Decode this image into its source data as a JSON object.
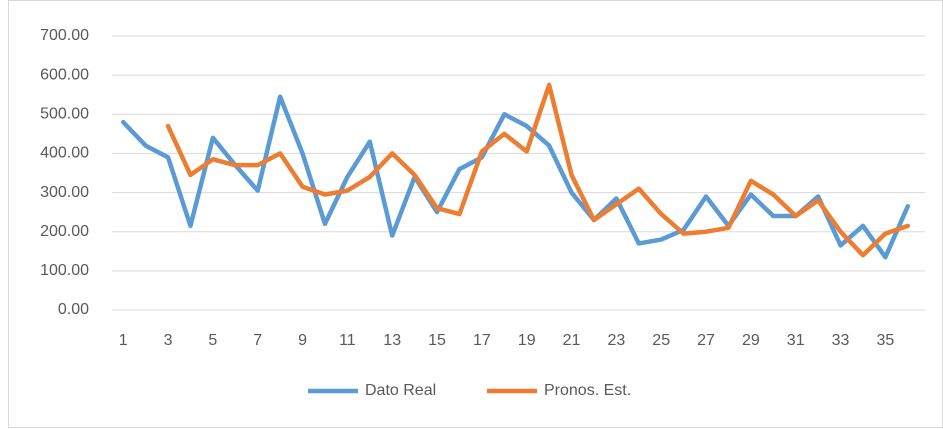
{
  "chart_data": {
    "type": "line",
    "categories": [
      "1",
      null,
      "3",
      null,
      "5",
      null,
      "7",
      null,
      "9",
      null,
      "11",
      null,
      "13",
      null,
      "15",
      null,
      "17",
      null,
      "19",
      null,
      "21",
      null,
      "23",
      null,
      "25",
      null,
      "27",
      null,
      "29",
      null,
      "31",
      null,
      "33",
      null,
      "35",
      null
    ],
    "series": [
      {
        "name": "Dato Real",
        "color": "#5b9bd5",
        "values": [
          480,
          420,
          390,
          215,
          440,
          370,
          305,
          545,
          400,
          220,
          340,
          430,
          190,
          340,
          250,
          360,
          390,
          500,
          470,
          420,
          300,
          230,
          285,
          170,
          180,
          205,
          290,
          215,
          295,
          240,
          240,
          290,
          165,
          215,
          135,
          265
        ]
      },
      {
        "name": "Pronos. Est.",
        "color": "#ed7d31",
        "values": [
          null,
          null,
          470,
          345,
          385,
          370,
          370,
          400,
          315,
          295,
          305,
          340,
          400,
          345,
          260,
          245,
          405,
          450,
          405,
          575,
          345,
          230,
          270,
          310,
          245,
          195,
          200,
          210,
          330,
          295,
          240,
          280,
          200,
          140,
          195,
          215
        ]
      }
    ],
    "ylim": [
      0,
      700
    ],
    "yticks": [
      {
        "value": 0,
        "label": "0.00"
      },
      {
        "value": 100,
        "label": "100.00"
      },
      {
        "value": 200,
        "label": "200.00"
      },
      {
        "value": 300,
        "label": "300.00"
      },
      {
        "value": 400,
        "label": "400.00"
      },
      {
        "value": 500,
        "label": "500.00"
      },
      {
        "value": 600,
        "label": "600.00"
      },
      {
        "value": 700,
        "label": "700.00"
      }
    ],
    "grid": true,
    "legend": "bottom"
  }
}
